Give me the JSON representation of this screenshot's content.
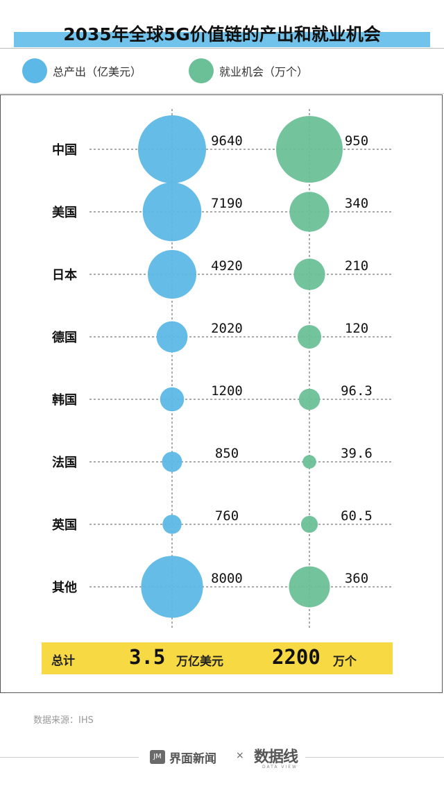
{
  "title": "2035年全球5G价值链的产出和就业机会",
  "legend": [
    {
      "label": "总产出（亿美元）",
      "color": "#5cb8e6"
    },
    {
      "label": "就业机会（万个）",
      "color": "#6cc097"
    }
  ],
  "chart_data": {
    "type": "scatter",
    "categories": [
      "中国",
      "美国",
      "日本",
      "德国",
      "韩国",
      "法国",
      "英国",
      "其他"
    ],
    "series": [
      {
        "name": "总产出（亿美元）",
        "color": "#5cb8e6",
        "values": [
          9640,
          7190,
          4920,
          2020,
          1200,
          850,
          760,
          8000
        ],
        "labels": [
          "9640",
          "7190",
          "4920",
          "2020",
          "1200",
          "850",
          "760",
          "8000"
        ]
      },
      {
        "name": "就业机会（万个）",
        "color": "#6cc097",
        "values": [
          950,
          340,
          210,
          120,
          96.3,
          39.6,
          60.5,
          360
        ],
        "labels": [
          "950",
          "340",
          "210",
          "120",
          "96.3",
          "39.6",
          "60.5",
          "360"
        ]
      }
    ]
  },
  "total": {
    "label": "总计",
    "output_value": "3.5",
    "output_unit": "万亿美元",
    "jobs_value": "2200",
    "jobs_unit": "万个"
  },
  "source": "数据来源：IHS",
  "footer": {
    "logo1_icon": "JM",
    "logo1": "界面新闻",
    "separator": "×",
    "logo2": "数据线",
    "logo2_sub": "DATA VIEW"
  }
}
